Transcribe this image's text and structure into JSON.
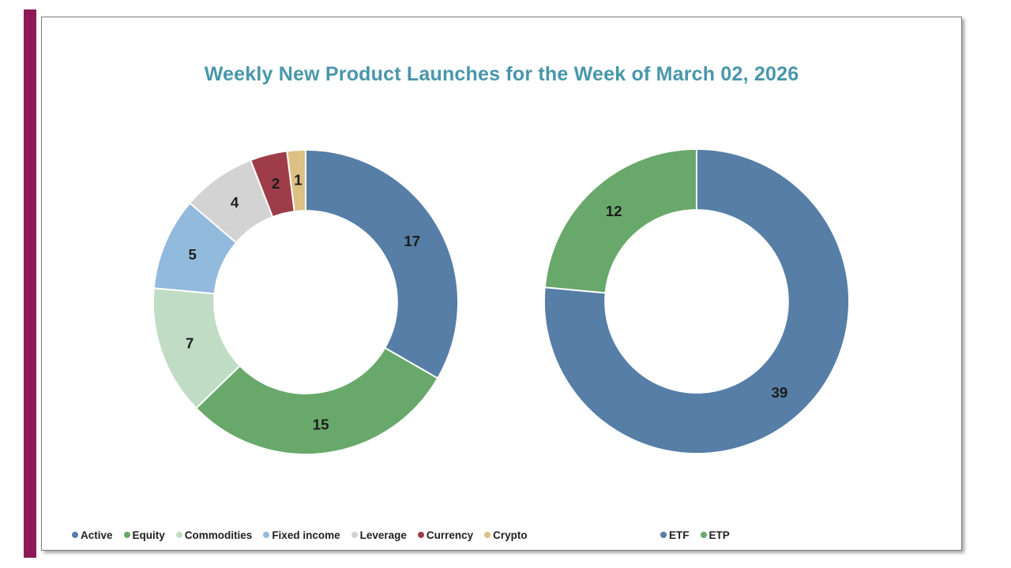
{
  "page": {
    "background_color": "#ffffff"
  },
  "accent_bar": {
    "color": "#8c1b57"
  },
  "frame": {
    "border_color": "#7d7d7d"
  },
  "title": {
    "text": "Weekly New Product Launches for the Week of March 02, 2026",
    "color": "#4896ab"
  },
  "chart_data": [
    {
      "type": "donut",
      "name": "launches-by-asset-class",
      "title": "",
      "categories": [
        "Active",
        "Equity",
        "Commodities",
        "Fixed income",
        "Leverage",
        "Currency",
        "Crypto"
      ],
      "values": [
        17,
        15,
        7,
        5,
        4,
        2,
        1
      ],
      "colors": [
        "#567ea6",
        "#69a86b",
        "#c1dcc4",
        "#92badd",
        "#d3d3d3",
        "#9e3d48",
        "#dcc084"
      ],
      "total": 51,
      "start_angle_deg": 0,
      "direction": "clockwise",
      "inner_radius_ratio": 0.6,
      "data_labels": "values-inside",
      "label_color": "#1c1c1c",
      "legend_position": "bottom-left"
    },
    {
      "type": "donut",
      "name": "launches-by-structure",
      "title": "",
      "categories": [
        "ETF",
        "ETP"
      ],
      "values": [
        39,
        12
      ],
      "colors": [
        "#567ea6",
        "#69a86b"
      ],
      "total": 51,
      "start_angle_deg": 0,
      "direction": "clockwise",
      "inner_radius_ratio": 0.6,
      "data_labels": "values-inside",
      "label_color": "#1c1c1c",
      "legend_position": "bottom-center"
    }
  ]
}
